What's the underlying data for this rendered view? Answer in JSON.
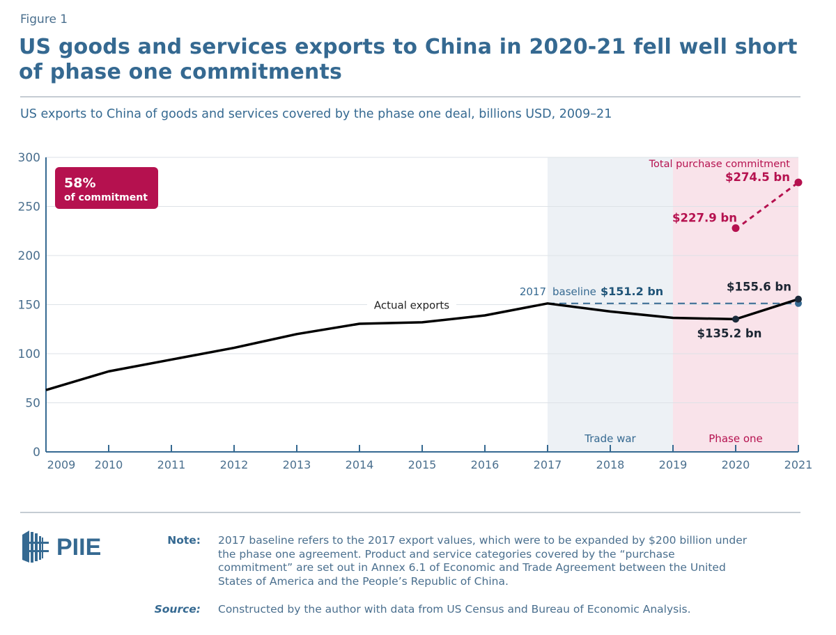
{
  "figure_label": "Figure 1",
  "title": "US goods and services exports to China in 2020-21 fell well short of phase one commitments",
  "subtitle": "US exports to China of goods and services covered by the phase one deal, billions USD, 2009–21",
  "colors": {
    "accent": "#356991",
    "commitment": "#b5114f",
    "line": "#000000",
    "trade_war_bg": "#edf1f5",
    "phase_one_bg": "#f9e3ea"
  },
  "chart_data": {
    "type": "line",
    "title": "US exports to China of goods and services covered by the phase one deal, billions USD, 2009–21",
    "xlabel": "",
    "ylabel": "",
    "ylim": [
      0,
      300
    ],
    "yticks": [
      0,
      50,
      100,
      150,
      200,
      250,
      300
    ],
    "x": [
      2009,
      2010,
      2011,
      2012,
      2013,
      2014,
      2015,
      2016,
      2017,
      2018,
      2019,
      2020,
      2021
    ],
    "grid": true,
    "series": [
      {
        "name": "Actual exports",
        "values": [
          63,
          82,
          94,
          106,
          120,
          130.5,
          132,
          139,
          151.2,
          143,
          136.5,
          135.2,
          155.6
        ]
      },
      {
        "name": "Total purchase commitment",
        "x": [
          2020,
          2021
        ],
        "values": [
          227.9,
          274.5
        ]
      },
      {
        "name": "2017 baseline",
        "x": [
          2017,
          2021
        ],
        "values": [
          151.2,
          151.2
        ]
      }
    ],
    "regions": [
      {
        "label": "Trade war",
        "from": 2017,
        "to": 2019
      },
      {
        "label": "Phase one",
        "from": 2019,
        "to": 2021
      }
    ],
    "annotations": {
      "badge_value": "58%",
      "badge_text": "of commitment",
      "actual_exports_label": "Actual exports",
      "baseline_prefix": "2017",
      "baseline_label": "baseline",
      "baseline_value": "$151.2 bn",
      "commitment_title": "Total purchase commitment",
      "commitment_2021": "$274.5 bn",
      "commitment_2020": "$227.9 bn",
      "actual_2021": "$155.6 bn",
      "actual_2020": "$135.2 bn"
    }
  },
  "logo": {
    "text": "PIIE",
    "icon": "piie-building-icon"
  },
  "notes": {
    "note_label": "Note:",
    "note_lines": [
      "2017 baseline refers to the 2017 export values, which were to be expanded by $200 billion under",
      "the phase one agreement. Product and service categories covered by the “purchase",
      "commitment” are set out in Annex 6.1 of Economic and Trade Agreement between the United",
      "States of America and the People’s Republic of China."
    ],
    "source_label": "Source:",
    "source_text": "Constructed by the author with data from US Census and Bureau of Economic Analysis."
  }
}
